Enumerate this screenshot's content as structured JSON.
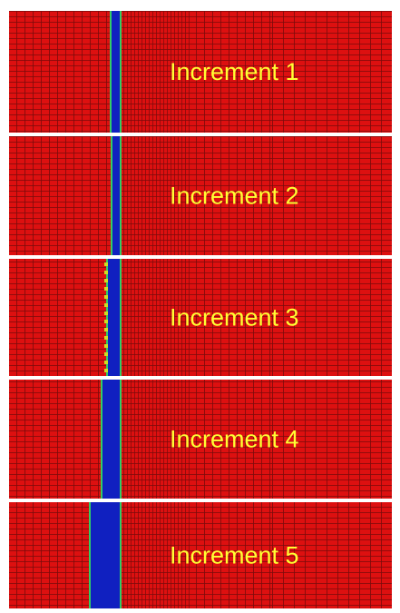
{
  "panels": [
    {
      "label": "Increment 1"
    },
    {
      "label": "Increment 2"
    },
    {
      "label": "Increment 3"
    },
    {
      "label": "Increment 4"
    },
    {
      "label": "Increment 5"
    }
  ]
}
